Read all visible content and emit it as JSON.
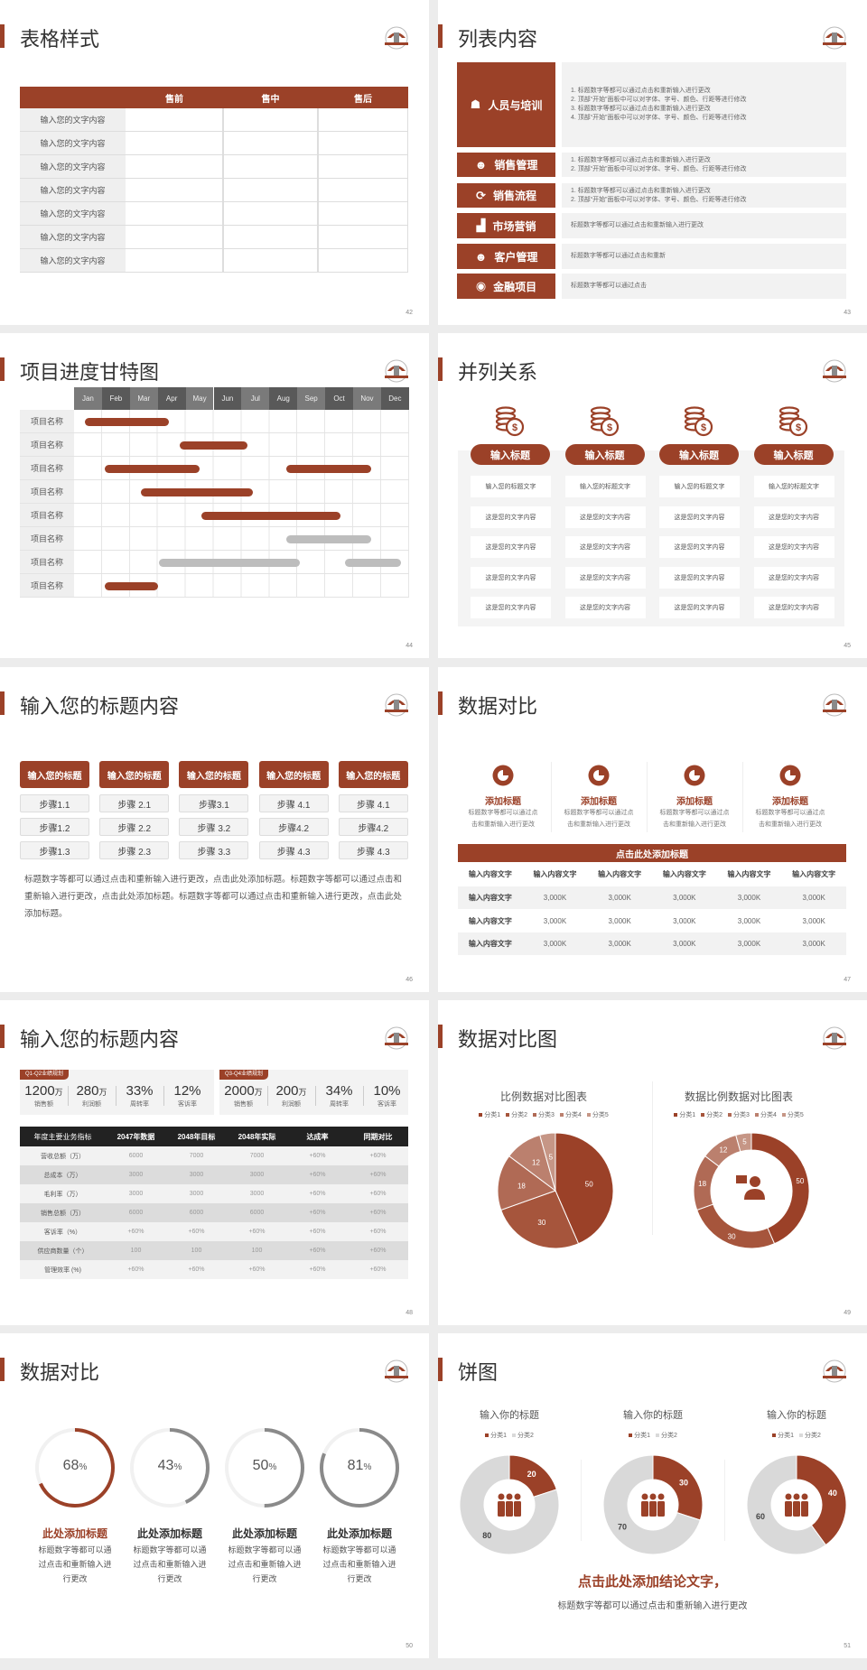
{
  "colors": {
    "accent": "#9b4128",
    "gray": "#8a8a8a",
    "light": "#f2f2f2"
  },
  "slides": {
    "s42": {
      "title": "表格样式",
      "page": "42",
      "headers": [
        "",
        "售前",
        "售中",
        "售后"
      ],
      "rows": [
        "输入您的文字内容",
        "输入您的文字内容",
        "输入您的文字内容",
        "输入您的文字内容",
        "输入您的文字内容",
        "输入您的文字内容",
        "输入您的文字内容"
      ]
    },
    "s43": {
      "title": "列表内容",
      "page": "43",
      "items": [
        {
          "icon": "people-training-icon",
          "label": "人员与培训",
          "lines": [
            "1.  标题数字等都可以通过点击和重新输入进行更改",
            "2.  顶部“开始”面板中可以对字体、字号、颜色、行距等进行修改",
            "3.  标题数字等都可以通过点击和重新输入进行更改",
            "4.  顶部“开始”面板中可以对字体、字号、颜色、行距等进行修改"
          ]
        },
        {
          "icon": "sales-manager-icon",
          "label": "销售管理",
          "lines": [
            "1.  标题数字等都可以通过点击和重新输入进行更改",
            "2.  顶部“开始”面板中可以对字体、字号、颜色、行距等进行修改"
          ]
        },
        {
          "icon": "cycle-icon",
          "label": "销售流程",
          "lines": [
            "1.  标题数字等都可以通过点击和重新输入进行更改",
            "2.  顶部“开始”面板中可以对字体、字号、颜色、行距等进行修改"
          ]
        },
        {
          "icon": "bar-chart-icon",
          "label": "市场营销",
          "lines": [
            "标题数字等都可以通过点击和重新输入进行更改"
          ]
        },
        {
          "icon": "customers-icon",
          "label": "客户管理",
          "lines": [
            "标题数字等都可以通过点击和重新"
          ]
        },
        {
          "icon": "finance-icon",
          "label": "金融项目",
          "lines": [
            "标题数字等都可以通过点击"
          ]
        }
      ]
    },
    "s44": {
      "title": "项目进度甘特图",
      "page": "44",
      "months": [
        "Jan",
        "Feb",
        "Mar",
        "Apr",
        "May",
        "Jun",
        "Jul",
        "Aug",
        "Sep",
        "Oct",
        "Nov",
        "Dec"
      ],
      "rows": [
        {
          "label": "项目名称",
          "bars": [
            {
              "start": 1.4,
              "end": 4.4,
              "color": "#9b4128"
            }
          ]
        },
        {
          "label": "项目名称",
          "bars": [
            {
              "start": 4.8,
              "end": 7.2,
              "color": "#9b4128"
            }
          ]
        },
        {
          "label": "项目名称",
          "bars": [
            {
              "start": 2.1,
              "end": 5.5,
              "color": "#9b4128"
            },
            {
              "start": 8.6,
              "end": 11.65,
              "color": "#9b4128"
            }
          ]
        },
        {
          "label": "项目名称",
          "bars": [
            {
              "start": 3.4,
              "end": 7.4,
              "color": "#9b4128"
            }
          ]
        },
        {
          "label": "项目名称",
          "bars": [
            {
              "start": 5.55,
              "end": 10.55,
              "color": "#9b4128"
            }
          ]
        },
        {
          "label": "项目名称",
          "bars": [
            {
              "start": 8.6,
              "end": 11.65,
              "color": "#bdbdbd"
            }
          ]
        },
        {
          "label": "项目名称",
          "bars": [
            {
              "start": 4.05,
              "end": 9.1,
              "color": "#bdbdbd"
            },
            {
              "start": 10.7,
              "end": 12.7,
              "color": "#bdbdbd"
            }
          ]
        },
        {
          "label": "项目名称",
          "bars": [
            {
              "start": 2.1,
              "end": 4.0,
              "color": "#9b4128"
            }
          ]
        }
      ]
    },
    "s45": {
      "title": "并列关系",
      "page": "45",
      "columns": [
        {
          "heading": "输入标题",
          "cells": [
            "输入您的标题文字",
            "这是您的文字内容",
            "这是您的文字内容",
            "这是您的文字内容",
            "这是您的文字内容"
          ]
        },
        {
          "heading": "输入标题",
          "cells": [
            "输入您的标题文字",
            "这是您的文字内容",
            "这是您的文字内容",
            "这是您的文字内容",
            "这是您的文字内容"
          ]
        },
        {
          "heading": "输入标题",
          "cells": [
            "输入您的标题文字",
            "这是您的文字内容",
            "这是您的文字内容",
            "这是您的文字内容",
            "这是您的文字内容"
          ]
        },
        {
          "heading": "输入标题",
          "cells": [
            "输入您的标题文字",
            "这是您的文字内容",
            "这是您的文字内容",
            "这是您的文字内容",
            "这是您的文字内容"
          ]
        }
      ]
    },
    "s46": {
      "title": "输入您的标题内容",
      "page": "46",
      "columns": [
        {
          "heading": "输入您的标题",
          "steps": [
            "步骤1.1",
            "步骤1.2",
            "步骤1.3"
          ]
        },
        {
          "heading": "输入您的标题",
          "steps": [
            "步骤 2.1",
            "步骤 2.2",
            "步骤 2.3"
          ]
        },
        {
          "heading": "输入您的标题",
          "steps": [
            "步骤3.1",
            "步骤 3.2",
            "步骤 3.3"
          ]
        },
        {
          "heading": "输入您的标题",
          "steps": [
            "步骤 4.1",
            "步骤4.2",
            "步骤 4.3"
          ]
        },
        {
          "heading": "输入您的标题",
          "steps": [
            "步骤 4.1",
            "步骤4.2",
            "步骤 4.3"
          ]
        }
      ],
      "paragraph": "标题数字等都可以通过点击和重新输入进行更改，点击此处添加标题。标题数字等都可以通过点击和重新输入进行更改，点击此处添加标题。标题数字等都可以通过点击和重新输入进行更改，点击此处添加标题。"
    },
    "s47": {
      "title": "数据对比",
      "page": "47",
      "features": [
        {
          "title": "添加标题",
          "desc": "标题数字等都可以通过点击和重新输入进行更改"
        },
        {
          "title": "添加标题",
          "desc": "标题数字等都可以通过点击和重新输入进行更改"
        },
        {
          "title": "添加标题",
          "desc": "标题数字等都可以通过点击和重新输入进行更改"
        },
        {
          "title": "添加标题",
          "desc": "标题数字等都可以通过点击和重新输入进行更改"
        }
      ],
      "table_title": "点击此处添加标题",
      "headers": [
        "输入内容文字",
        "输入内容文字",
        "输入内容文字",
        "输入内容文字",
        "输入内容文字",
        "输入内容文字"
      ],
      "rows": [
        [
          "输入内容文字",
          "3,000K",
          "3,000K",
          "3,000K",
          "3,000K",
          "3,000K"
        ],
        [
          "输入内容文字",
          "3,000K",
          "3,000K",
          "3,000K",
          "3,000K",
          "3,000K"
        ],
        [
          "输入内容文字",
          "3,000K",
          "3,000K",
          "3,000K",
          "3,000K",
          "3,000K"
        ]
      ]
    },
    "s48": {
      "title": "输入您的标题内容",
      "page": "48",
      "groups": [
        {
          "tag": "Q1-Q2业绩规划",
          "stats": [
            {
              "value": "1200",
              "unit": "万",
              "label": "销售额"
            },
            {
              "value": "280",
              "unit": "万",
              "label": "利润额"
            },
            {
              "value": "33%",
              "unit": "",
              "label": "周转率"
            },
            {
              "value": "12%",
              "unit": "",
              "label": "客诉率"
            }
          ]
        },
        {
          "tag": "Q3-Q4业绩规划",
          "stats": [
            {
              "value": "2000",
              "unit": "万",
              "label": "销售额"
            },
            {
              "value": "200",
              "unit": "万",
              "label": "利润额"
            },
            {
              "value": "34%",
              "unit": "",
              "label": "周转率"
            },
            {
              "value": "10%",
              "unit": "",
              "label": "客诉率"
            }
          ]
        }
      ],
      "headers": [
        "年度主要业务指标",
        "2047年数据",
        "2048年目标",
        "2048年实际",
        "达成率",
        "同期对比"
      ],
      "rows": [
        [
          "营收总额（万）",
          "6000",
          "7000",
          "7000",
          "+60%",
          "+60%"
        ],
        [
          "总成本（万）",
          "3000",
          "3000",
          "3000",
          "+60%",
          "+60%"
        ],
        [
          "毛利率（万）",
          "3000",
          "3000",
          "3000",
          "+60%",
          "+60%"
        ],
        [
          "销售总额（万）",
          "6000",
          "6000",
          "6000",
          "+60%",
          "+60%"
        ],
        [
          "客诉率（%）",
          "+60%",
          "+60%",
          "+60%",
          "+60%",
          "+60%"
        ],
        [
          "供应商数量（个）",
          "100",
          "100",
          "100",
          "+60%",
          "+60%"
        ],
        [
          "管理效率 (%)",
          "+60%",
          "+60%",
          "+60%",
          "+60%",
          "+60%"
        ]
      ]
    },
    "s49": {
      "title": "数据对比图",
      "page": "49"
    },
    "s50": {
      "title": "数据对比",
      "page": "50",
      "rings": [
        {
          "value": 68,
          "unit": "%",
          "title": "此处添加标题",
          "desc": "标题数字等都可以通过点击和重新输入进行更改",
          "color": "#9b4128"
        },
        {
          "value": 43,
          "unit": "%",
          "title": "此处添加标题",
          "desc": "标题数字等都可以通过点击和重新输入进行更改",
          "color": "#8a8a8a"
        },
        {
          "value": 50,
          "unit": "%",
          "title": "此处添加标题",
          "desc": "标题数字等都可以通过点击和重新输入进行更改",
          "color": "#8a8a8a"
        },
        {
          "value": 81,
          "unit": "%",
          "title": "此处添加标题",
          "desc": "标题数字等都可以通过点击和重新输入进行更改",
          "color": "#8a8a8a"
        }
      ]
    },
    "s51": {
      "title": "饼图",
      "page": "51",
      "conclusion": "点击此处添加结论文字，",
      "subtext": "标题数字等都可以通过点击和重新输入进行更改"
    }
  },
  "chart_data": [
    {
      "type": "pie",
      "title": "比例数据对比图表",
      "legend": "top",
      "categories": [
        "分类1",
        "分类2",
        "分类3",
        "分类4",
        "分类5"
      ],
      "values": [
        50,
        30,
        18,
        12,
        5
      ],
      "colors": [
        "#9b4128",
        "#a6553c",
        "#b06a55",
        "#bb806e",
        "#c69686"
      ]
    },
    {
      "type": "pie",
      "variant": "donut",
      "title": "数据比例数据对比图表",
      "legend": "top",
      "center_icon": "consultant-icon",
      "categories": [
        "分类1",
        "分类2",
        "分类3",
        "分类4",
        "分类5"
      ],
      "values": [
        50,
        30,
        18,
        12,
        5
      ],
      "colors": [
        "#9b4128",
        "#a6553c",
        "#b06a55",
        "#bb806e",
        "#c69686"
      ]
    },
    {
      "type": "pie",
      "variant": "donut",
      "title": "输入你的标题",
      "legend": "top",
      "center_icon": "team-icon",
      "categories": [
        "分类1",
        "分类2"
      ],
      "values": [
        20,
        80
      ],
      "colors": [
        "#9b4128",
        "#d9d9d9"
      ]
    },
    {
      "type": "pie",
      "variant": "donut",
      "title": "输入你的标题",
      "legend": "top",
      "center_icon": "team-icon",
      "categories": [
        "分类1",
        "分类2"
      ],
      "values": [
        30,
        70
      ],
      "colors": [
        "#9b4128",
        "#d9d9d9"
      ]
    },
    {
      "type": "pie",
      "variant": "donut",
      "title": "输入你的标题",
      "legend": "top",
      "center_icon": "team-icon",
      "categories": [
        "分类1",
        "分类2"
      ],
      "values": [
        40,
        60
      ],
      "colors": [
        "#9b4128",
        "#d9d9d9"
      ]
    }
  ]
}
